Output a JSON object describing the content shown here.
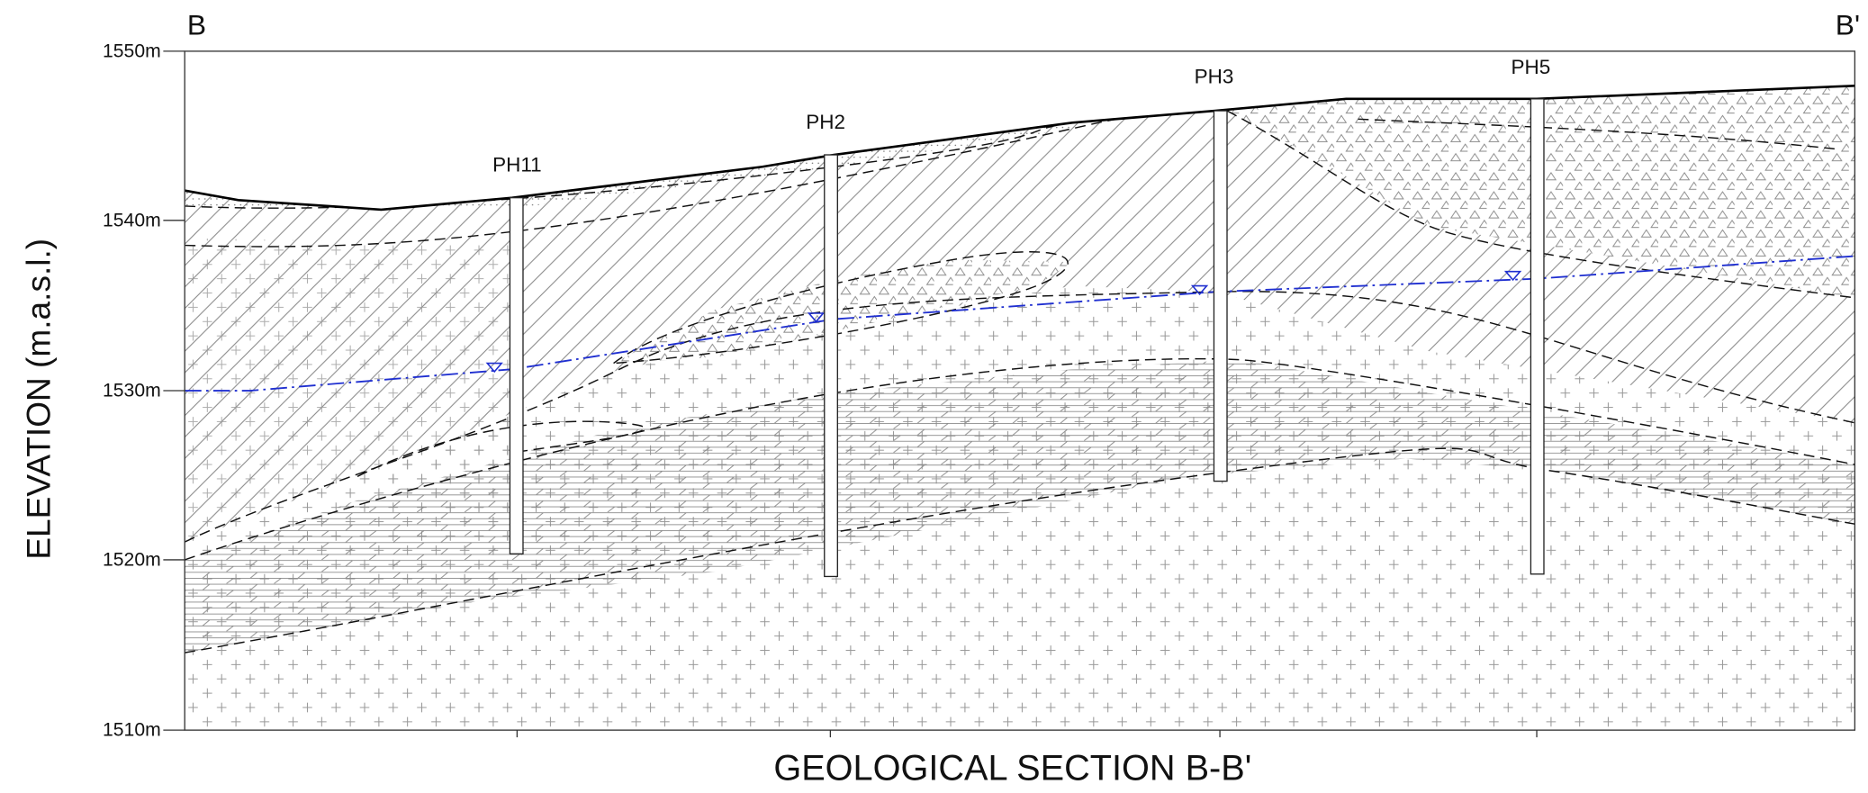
{
  "section": {
    "title": "GEOLOGICAL SECTION B-B'",
    "start_label": "B",
    "end_label": "B'",
    "y_axis_label": "ELEVATION (m.a.s.l.)",
    "elevation_ticks": [
      "1550m",
      "1540m",
      "1530m",
      "1520m",
      "1510m"
    ],
    "boreholes": [
      "PH11",
      "PH2",
      "PH3",
      "PH5"
    ]
  }
}
